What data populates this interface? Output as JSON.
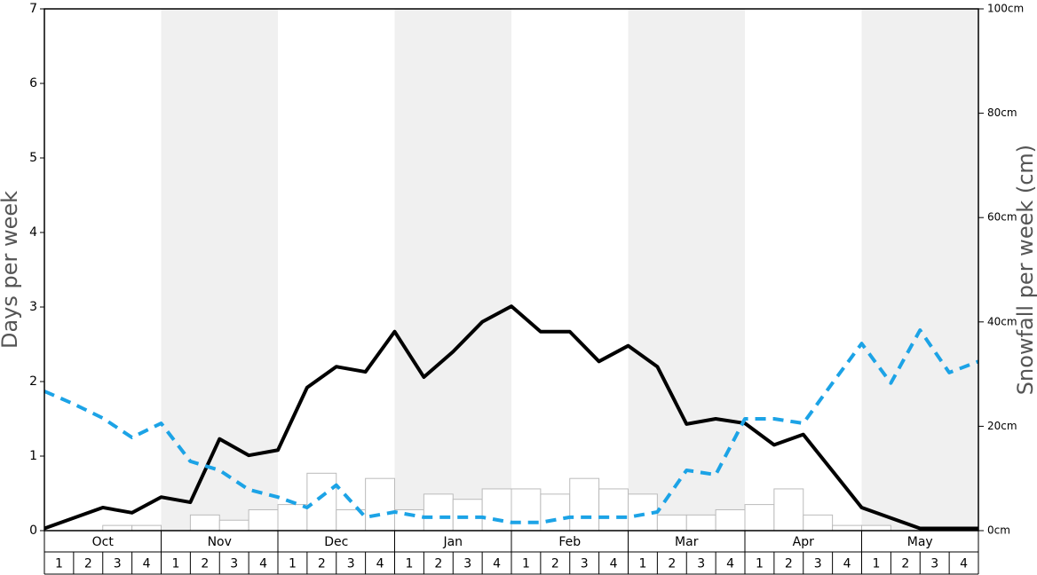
{
  "chart_data": {
    "type": "line",
    "ylabel": "Days per week",
    "y2label": "Snowfall per week (cm)",
    "months": [
      "Oct",
      "Nov",
      "Dec",
      "Jan",
      "Feb",
      "Mar",
      "Apr",
      "May"
    ],
    "weeks": [
      1,
      2,
      3,
      4
    ],
    "ylim": [
      0,
      7
    ],
    "yticks": [
      0,
      1,
      2,
      3,
      4,
      5,
      6,
      7
    ],
    "y2lim": [
      0,
      100
    ],
    "y2ticks": [
      {
        "value": 0,
        "label": "0cm"
      },
      {
        "value": 20,
        "label": "20cm"
      },
      {
        "value": 40,
        "label": "40cm"
      },
      {
        "value": 60,
        "label": "60cm"
      },
      {
        "value": 80,
        "label": "80cm"
      },
      {
        "value": 100,
        "label": "100cm"
      }
    ],
    "shade_color": "#f0f0f0",
    "series": [
      {
        "type": "bar",
        "axis": "y2",
        "color": "#ffffff",
        "values": [
          0,
          0,
          1,
          1,
          0,
          3,
          2,
          4,
          5,
          11,
          4,
          10,
          4,
          7,
          6,
          8,
          8,
          7,
          10,
          8,
          7,
          3,
          3,
          4,
          5,
          8,
          3,
          1,
          1,
          0,
          0,
          0
        ]
      },
      {
        "type": "line",
        "color": "#000000",
        "dashed": false,
        "values": [
          0.03,
          0.17,
          0.31,
          0.24,
          0.45,
          0.38,
          1.23,
          1.01,
          1.08,
          1.92,
          2.2,
          2.13,
          2.67,
          2.06,
          2.4,
          2.8,
          3.01,
          2.67,
          2.67,
          2.27,
          2.48,
          2.2,
          1.43,
          1.5,
          1.44,
          1.15,
          1.29,
          0.8,
          0.31,
          0.17,
          0.03,
          0.03,
          0.03
        ]
      },
      {
        "type": "line",
        "color": "#1ca3e6",
        "dashed": true,
        "values": [
          1.87,
          1.7,
          1.51,
          1.25,
          1.44,
          0.93,
          0.81,
          0.55,
          0.45,
          0.31,
          0.61,
          0.18,
          0.25,
          0.18,
          0.18,
          0.18,
          0.11,
          0.11,
          0.18,
          0.18,
          0.18,
          0.25,
          0.81,
          0.75,
          1.5,
          1.5,
          1.44,
          1.98,
          2.51,
          1.98,
          2.69,
          2.12,
          2.27
        ]
      }
    ]
  }
}
